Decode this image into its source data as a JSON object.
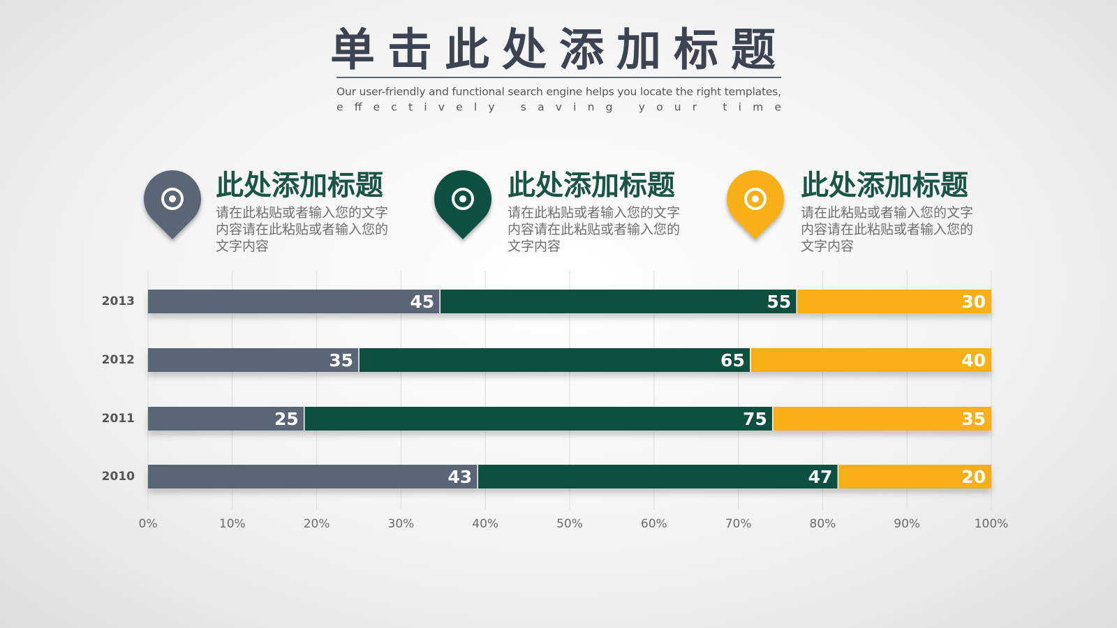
{
  "chart_data": {
    "type": "stacked-bar-horizontal",
    "stacked": "percent",
    "title": "单击此处添加标题",
    "subtitle": [
      "Our user-friendly and functional search engine helps you locate the right templates,",
      "effectively saving your time"
    ],
    "categories": [
      "2013",
      "2012",
      "2011",
      "2010"
    ],
    "series": [
      {
        "color": "#5a6574",
        "values": [
          45,
          35,
          25,
          43
        ]
      },
      {
        "color": "#0f4f40",
        "values": [
          55,
          65,
          75,
          47
        ]
      },
      {
        "color": "#f8b012",
        "values": [
          30,
          40,
          35,
          20
        ]
      }
    ],
    "xlim": [
      0,
      100
    ],
    "xticks": [
      {
        "value": 0,
        "label": "0%"
      },
      {
        "value": 10,
        "label": "10%"
      },
      {
        "value": 20,
        "label": "20%"
      },
      {
        "value": 30,
        "label": "30%"
      },
      {
        "value": 40,
        "label": "40%"
      },
      {
        "value": 50,
        "label": "50%"
      },
      {
        "value": 60,
        "label": "60%"
      },
      {
        "value": 70,
        "label": "70%"
      },
      {
        "value": 80,
        "label": "80%"
      },
      {
        "value": 90,
        "label": "90%"
      },
      {
        "value": 100,
        "label": "100%"
      }
    ],
    "grid": true
  },
  "cards": [
    {
      "title": "此处添加标题",
      "text": "请在此粘贴或者输入您的文字内容请在此粘贴或者输入您的文字内容"
    },
    {
      "title": "此处添加标题",
      "text": "请在此粘贴或者输入您的文字内容请在此粘贴或者输入您的文字内容"
    },
    {
      "title": "此处添加标题",
      "text": "请在此粘贴或者输入您的文字内容请在此粘贴或者输入您的文字内容"
    }
  ]
}
